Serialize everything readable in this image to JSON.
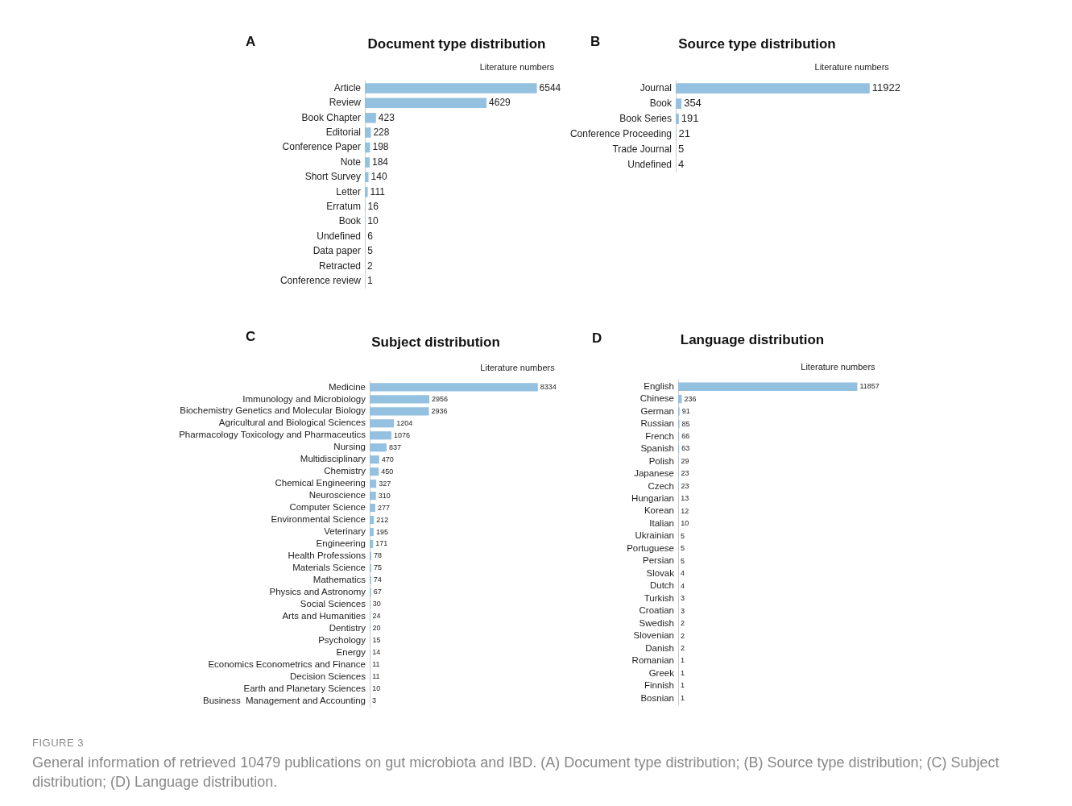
{
  "chart_data": [
    {
      "type": "bar",
      "orientation": "horizontal",
      "title": "Document type distribution",
      "xlabel": "Literature numbers",
      "annotations": [
        "A",
        "FIGURE 3",
        "General information of retrieved 10479 publications on gut microbiota and IBD. (A) Document type distribution; (B) Source type distribution; (C) Subject distribution; (D) Language distribution."
      ],
      "categories": [
        "Article",
        "Review",
        "Book Chapter",
        "Editorial",
        "Conference Paper",
        "Note",
        "Short Survey",
        "Letter",
        "Erratum",
        "Book",
        "Undefined",
        "Data paper",
        "Retracted",
        "Conference review"
      ],
      "values": [
        6544,
        4629,
        423,
        228,
        198,
        184,
        140,
        111,
        16,
        10,
        6,
        5,
        2,
        1
      ],
      "color": "#95c1e0",
      "data_labels": true,
      "grid": false,
      "legend": false,
      "tick_labels": "y"
    },
    {
      "type": "bar",
      "orientation": "horizontal",
      "title": "Source type distribution",
      "xlabel": "Literature numbers",
      "annotations": [
        "B"
      ],
      "categories": [
        "Journal",
        "Book",
        "Book Series",
        "Conference Proceeding",
        "Trade Journal",
        "Undefined"
      ],
      "values": [
        11922,
        354,
        191,
        21,
        5,
        4
      ],
      "color": "#95c1e0",
      "data_labels": true,
      "grid": false,
      "legend": false,
      "tick_labels": "y"
    },
    {
      "type": "bar",
      "orientation": "horizontal",
      "title": "Subject distribution",
      "xlabel": "Literature numbers",
      "annotations": [
        "C"
      ],
      "categories": [
        "Medicine",
        "Immunology and Microbiology",
        "Biochemistry Genetics and Molecular Biology",
        "Agricultural and Biological Sciences",
        "Pharmacology Toxicology and Pharmaceutics",
        "Nursing",
        "Multidisciplinary",
        "Chemistry",
        "Chemical Engineering",
        "Neuroscience",
        "Computer Science",
        "Environmental Science",
        "Veterinary",
        "Engineering",
        "Health Professions",
        "Materials Science",
        "Mathematics",
        "Physics and Astronomy",
        "Social Sciences",
        "Arts and Humanities",
        "Dentistry",
        "Psychology",
        "Energy",
        "Economics Econometrics and Finance",
        "Decision Sciences",
        "Earth and Planetary Sciences",
        "Business  Management and Accounting"
      ],
      "values": [
        8334,
        2956,
        2936,
        1204,
        1076,
        837,
        470,
        450,
        327,
        310,
        277,
        212,
        195,
        171,
        78,
        75,
        74,
        67,
        30,
        24,
        20,
        15,
        14,
        11,
        11,
        10,
        3
      ],
      "color": "#95c1e0",
      "data_labels": true,
      "grid": false,
      "legend": false,
      "tick_labels": "y"
    },
    {
      "type": "bar",
      "orientation": "horizontal",
      "title": "Language distribution",
      "xlabel": "Literature numbers",
      "annotations": [
        "D"
      ],
      "categories": [
        "English",
        "Chinese",
        "German",
        "Russian",
        "French",
        "Spanish",
        "Polish",
        "Japanese",
        "Czech",
        "Hungarian",
        "Korean",
        "Italian",
        "Ukrainian",
        "Portuguese",
        "Persian",
        "Slovak",
        "Dutch",
        "Turkish",
        "Croatian",
        "Swedish",
        "Slovenian",
        "Danish",
        "Romanian",
        "Greek",
        "Finnish",
        "Bosnian"
      ],
      "values": [
        11857,
        236,
        91,
        85,
        66,
        63,
        29,
        23,
        23,
        13,
        12,
        10,
        5,
        5,
        5,
        4,
        4,
        3,
        3,
        2,
        2,
        2,
        1,
        1,
        1,
        1
      ],
      "color": "#95c1e0",
      "data_labels": true,
      "grid": false,
      "legend": false,
      "tick_labels": "y"
    }
  ]
}
